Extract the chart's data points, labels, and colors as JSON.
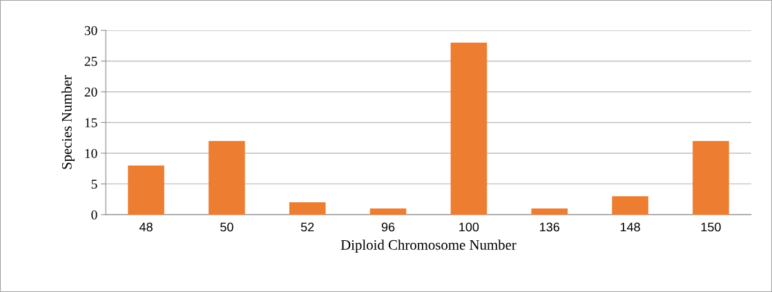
{
  "chart_data": {
    "type": "bar",
    "xlabel": "Diploid Chromosome Number",
    "ylabel": "Species Number",
    "categories": [
      "48",
      "50",
      "52",
      "96",
      "100",
      "136",
      "148",
      "150"
    ],
    "values": [
      8,
      12,
      2,
      1,
      28,
      1,
      3,
      12
    ],
    "color": "#ed7d31",
    "ylim": [
      0,
      30
    ],
    "yticks": [
      0,
      5,
      10,
      15,
      20,
      25,
      30
    ],
    "grid": "y"
  }
}
